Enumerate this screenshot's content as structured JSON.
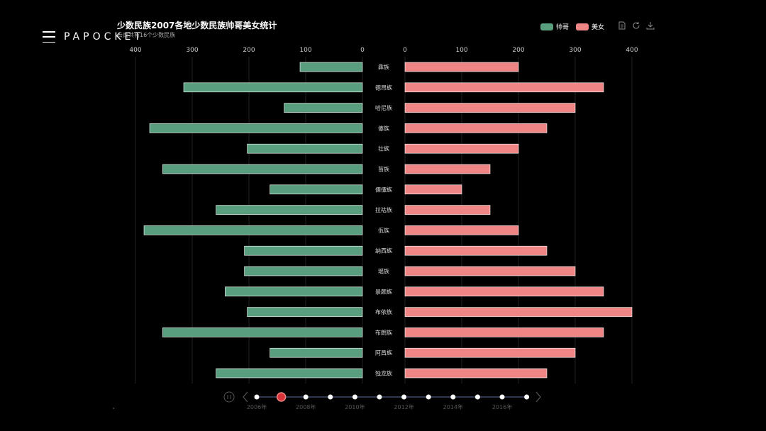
{
  "brand": {
    "name": "PAPOCKET"
  },
  "chart_data": {
    "type": "bar",
    "title": "少数民族2007各地少数民族帅哥美女统计",
    "subtitle": "云南共有16个少数民族",
    "categories": [
      "彝族",
      "德昂族",
      "哈尼族",
      "傣族",
      "壮族",
      "苗族",
      "傈僳族",
      "拉祜族",
      "佤族",
      "纳西族",
      "瑶族",
      "景颇族",
      "布依族",
      "布朗族",
      "阿昌族",
      "独龙族"
    ],
    "series": [
      {
        "name": "帅哥",
        "color": "#5a9e80",
        "values": [
          110,
          315,
          138,
          375,
          203,
          352,
          163,
          258,
          385,
          208,
          208,
          242,
          203,
          352,
          163,
          258
        ]
      },
      {
        "name": "美女",
        "color": "#f08585",
        "values": [
          200,
          350,
          300,
          250,
          200,
          150,
          100,
          150,
          200,
          250,
          300,
          350,
          400,
          350,
          300,
          250
        ]
      }
    ],
    "xlim": [
      0,
      400
    ],
    "left_axis_ticks": [
      "400",
      "300",
      "200",
      "100",
      "0"
    ],
    "right_axis_ticks": [
      "0",
      "100",
      "200",
      "300",
      "400"
    ],
    "legend_position": "top-right",
    "grid": true
  },
  "timeline": {
    "points": 12,
    "current_index": 1,
    "labels": [
      "2006年",
      "2008年",
      "2010年",
      "2012年",
      "2014年",
      "2016年"
    ]
  },
  "toolbox": {
    "icons": [
      "data-view-icon",
      "restore-icon",
      "save-image-icon"
    ]
  }
}
